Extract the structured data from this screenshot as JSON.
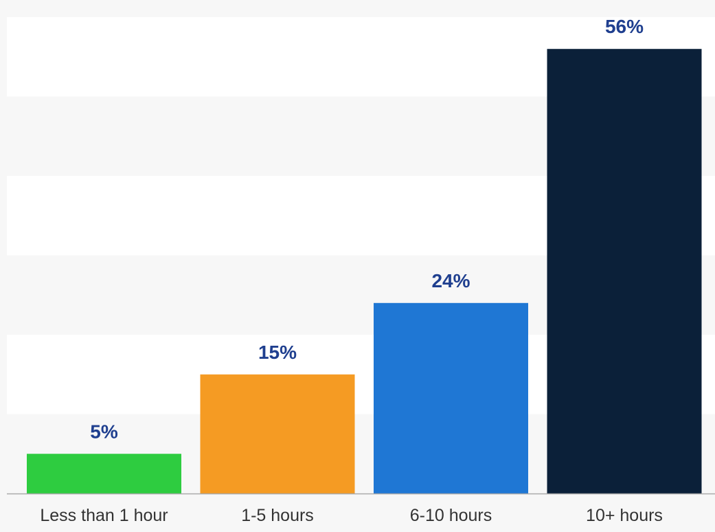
{
  "chart_data": {
    "type": "bar",
    "categories": [
      "Less than 1 hour",
      "1-5 hours",
      "6-10 hours",
      "10+ hours"
    ],
    "values": [
      5,
      15,
      24,
      56
    ],
    "value_labels": [
      "5%",
      "15%",
      "24%",
      "56%"
    ],
    "unit": "%",
    "title": "",
    "xlabel": "",
    "ylabel": "",
    "ylim": [
      0,
      60
    ],
    "grid": true,
    "legend": "none"
  },
  "colors": {
    "bars": [
      "#2ecc40",
      "#f59b23",
      "#1f77d4",
      "#0b2039"
    ],
    "value_label": "#1f3f8f",
    "category_label": "#333333",
    "band_light": "#ffffff",
    "band_dark": "#f7f7f7",
    "baseline": "#aaaaaa"
  }
}
